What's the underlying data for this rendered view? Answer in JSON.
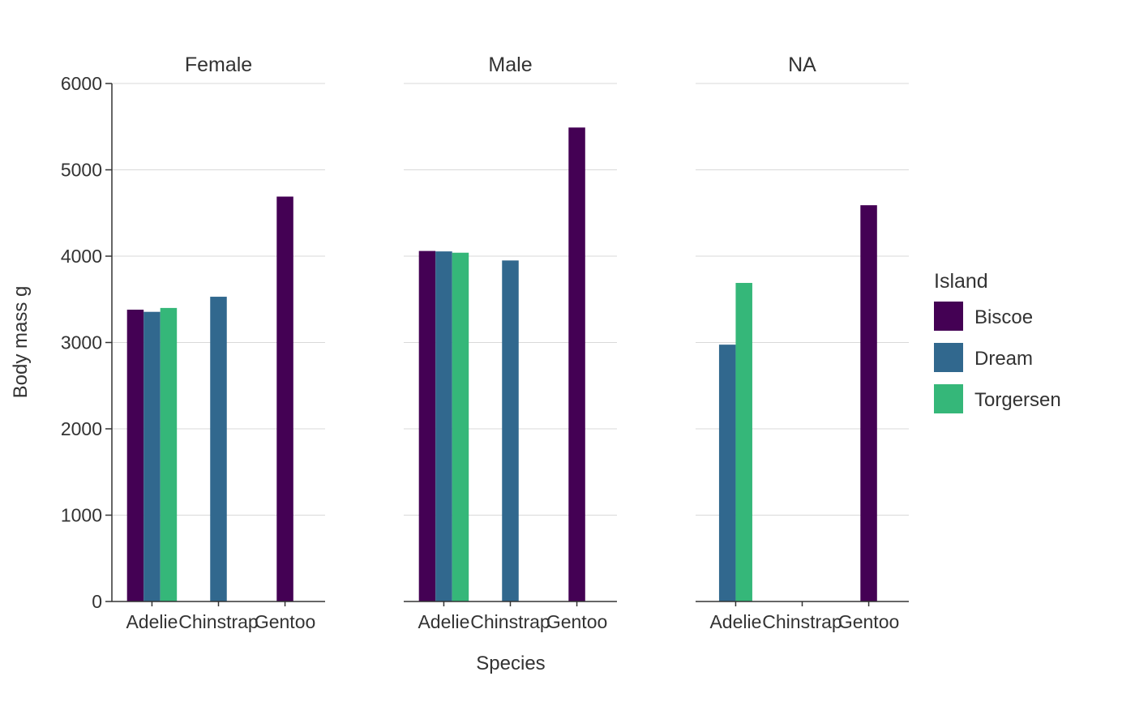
{
  "chart_data": {
    "type": "bar",
    "facets": [
      {
        "title": "Female",
        "categories": [
          "Adelie",
          "Chinstrap",
          "Gentoo"
        ],
        "series": [
          {
            "name": "Biscoe",
            "values": [
              3380,
              null,
              4690
            ]
          },
          {
            "name": "Dream",
            "values": [
              3355,
              3530,
              null
            ]
          },
          {
            "name": "Torgersen",
            "values": [
              3400,
              null,
              null
            ]
          }
        ]
      },
      {
        "title": "Male",
        "categories": [
          "Adelie",
          "Chinstrap",
          "Gentoo"
        ],
        "series": [
          {
            "name": "Biscoe",
            "values": [
              4060,
              null,
              5490
            ]
          },
          {
            "name": "Dream",
            "values": [
              4055,
              3950,
              null
            ]
          },
          {
            "name": "Torgersen",
            "values": [
              4040,
              null,
              null
            ]
          }
        ]
      },
      {
        "title": "NA",
        "categories": [
          "Adelie",
          "Chinstrap",
          "Gentoo"
        ],
        "series": [
          {
            "name": "Biscoe",
            "values": [
              null,
              null,
              4590
            ]
          },
          {
            "name": "Dream",
            "values": [
              2975,
              null,
              null
            ]
          },
          {
            "name": "Torgersen",
            "values": [
              3690,
              null,
              null
            ]
          }
        ]
      }
    ],
    "xlabel": "Species",
    "ylabel": "Body mass g",
    "ylim": [
      0,
      6000
    ],
    "yticks": [
      0,
      1000,
      2000,
      3000,
      4000,
      5000,
      6000
    ],
    "grid": "horizontal",
    "legend": {
      "title": "Island",
      "placement": "right",
      "entries": [
        "Biscoe",
        "Dream",
        "Torgersen"
      ]
    },
    "colors": {
      "Biscoe": "#440154",
      "Dream": "#31688e",
      "Torgersen": "#35b779"
    }
  }
}
